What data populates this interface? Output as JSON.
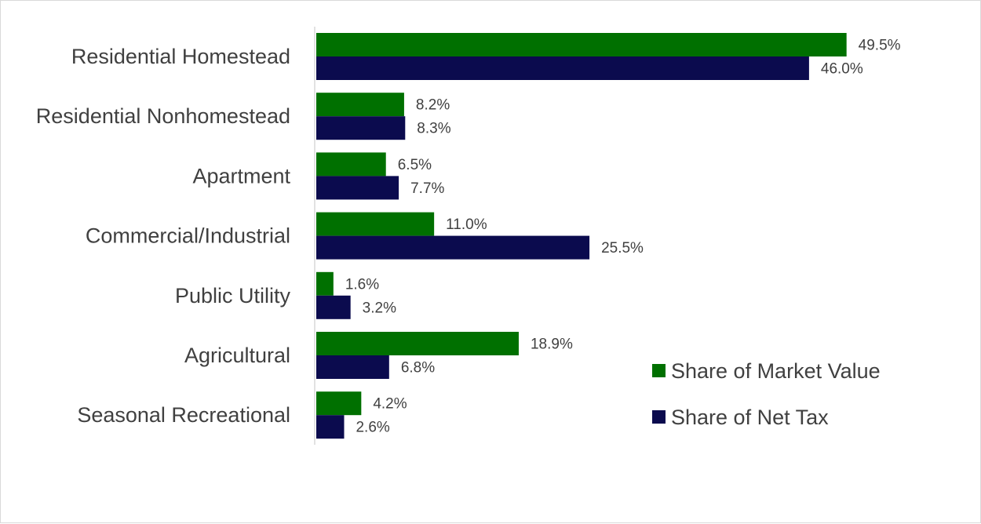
{
  "chart_data": {
    "type": "bar",
    "orientation": "horizontal",
    "categories": [
      "Residential Homestead",
      "Residential Nonhomestead",
      "Apartment",
      "Commercial/Industrial",
      "Public Utility",
      "Agricultural",
      "Seasonal Recreational"
    ],
    "series": [
      {
        "name": "Share of Market Value",
        "color": "#007000",
        "values": [
          49.5,
          8.2,
          6.5,
          11.0,
          1.6,
          18.9,
          4.2
        ],
        "labels": [
          "49.5%",
          "8.2%",
          "6.5%",
          "11.0%",
          "1.6%",
          "18.9%",
          "4.2%"
        ]
      },
      {
        "name": "Share of Net Tax",
        "color": "#0b0b4e",
        "values": [
          46.0,
          8.3,
          7.7,
          25.5,
          3.2,
          6.8,
          2.6
        ],
        "labels": [
          "46.0%",
          "8.3%",
          "7.7%",
          "25.5%",
          "3.2%",
          "6.8%",
          "2.6%"
        ]
      }
    ],
    "xlim": [
      0,
      58
    ],
    "grid": false,
    "legend_position": "bottom-right"
  }
}
